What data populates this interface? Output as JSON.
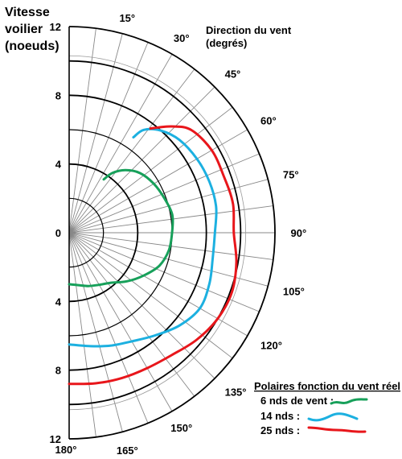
{
  "chart_data": {
    "type": "line",
    "subtype": "polar-half",
    "radial_axis": {
      "label_lines": [
        "Vitesse",
        "voilier",
        "(noeuds)"
      ],
      "range": [
        0,
        12
      ],
      "ticks_upper": [
        "12",
        "8",
        "4",
        "0"
      ],
      "ticks_lower": [
        "4",
        "8",
        "12"
      ]
    },
    "angular_axis": {
      "label_lines": [
        "Direction du vent",
        "(degrés)"
      ],
      "range": [
        0,
        180
      ],
      "ticks": [
        {
          "deg": 15,
          "label": "15°"
        },
        {
          "deg": 30,
          "label": "30°"
        },
        {
          "deg": 45,
          "label": "45°"
        },
        {
          "deg": 60,
          "label": "60°"
        },
        {
          "deg": 75,
          "label": "75°"
        },
        {
          "deg": 90,
          "label": "90°"
        },
        {
          "deg": 105,
          "label": "105°"
        },
        {
          "deg": 120,
          "label": "120°"
        },
        {
          "deg": 135,
          "label": "135°"
        },
        {
          "deg": 150,
          "label": "150°"
        },
        {
          "deg": 165,
          "label": "165°"
        },
        {
          "deg": 180,
          "label": "180°"
        }
      ]
    },
    "rings": [
      2,
      4,
      6,
      8,
      10,
      12
    ],
    "legend": {
      "title": "Polaires fonction du vent réel",
      "placement": "bottom-right"
    },
    "series": [
      {
        "name": "6 nds de vent :",
        "color": "#17a05a",
        "points": [
          [
            33,
            3.7
          ],
          [
            36,
            4.3
          ],
          [
            42,
            4.9
          ],
          [
            50,
            5.4
          ],
          [
            60,
            5.7
          ],
          [
            70,
            5.9
          ],
          [
            80,
            6.1
          ],
          [
            90,
            6.0
          ],
          [
            100,
            5.9
          ],
          [
            110,
            5.6
          ],
          [
            120,
            5.0
          ],
          [
            130,
            4.4
          ],
          [
            140,
            3.8
          ],
          [
            150,
            3.5
          ],
          [
            160,
            3.3
          ],
          [
            170,
            3.1
          ],
          [
            180,
            3.0
          ]
        ]
      },
      {
        "name": "14 nds :",
        "color": "#1cb0e0",
        "points": [
          [
            34,
            6.7
          ],
          [
            36,
            7.4
          ],
          [
            42,
            8.0
          ],
          [
            50,
            8.4
          ],
          [
            60,
            8.6
          ],
          [
            70,
            8.7
          ],
          [
            80,
            8.7
          ],
          [
            90,
            8.5
          ],
          [
            100,
            8.5
          ],
          [
            110,
            8.7
          ],
          [
            120,
            8.8
          ],
          [
            130,
            8.4
          ],
          [
            140,
            7.8
          ],
          [
            150,
            7.3
          ],
          [
            160,
            7.0
          ],
          [
            170,
            6.7
          ],
          [
            180,
            6.5
          ]
        ]
      },
      {
        "name": "25 nds :",
        "color": "#e8161b",
        "points": [
          [
            38,
            7.7
          ],
          [
            44,
            8.6
          ],
          [
            50,
            9.3
          ],
          [
            60,
            9.6
          ],
          [
            70,
            9.6
          ],
          [
            80,
            9.7
          ],
          [
            90,
            9.6
          ],
          [
            100,
            9.9
          ],
          [
            110,
            10.1
          ],
          [
            120,
            10.0
          ],
          [
            130,
            9.7
          ],
          [
            140,
            9.3
          ],
          [
            150,
            9.1
          ],
          [
            160,
            9.0
          ],
          [
            170,
            8.9
          ],
          [
            180,
            8.8
          ]
        ]
      }
    ]
  }
}
